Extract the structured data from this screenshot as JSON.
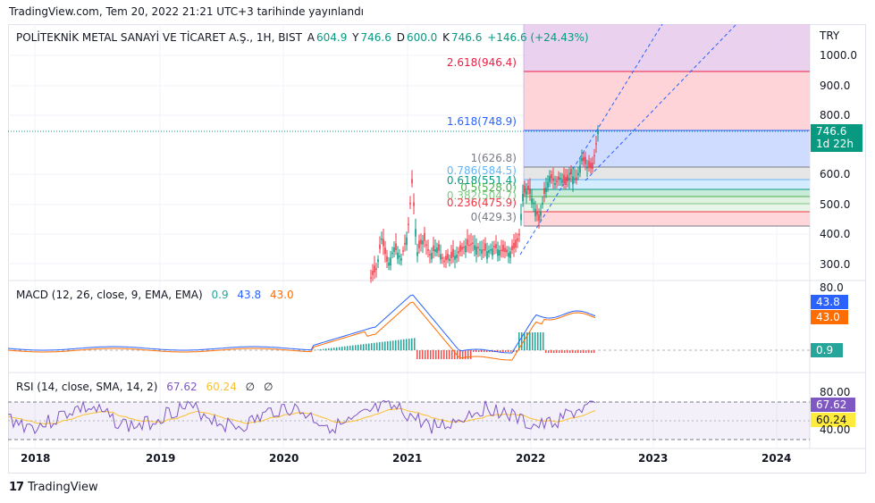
{
  "published": "TradingView.com, Tem 20, 2022 21:21 UTC+3 tarihinde yayınlandı",
  "header": {
    "symbol": "POLİTEKNİK METAL SANAYİ VE TİCARET A.Ş., 1H, BIST",
    "a_label": "A",
    "a_value": "604.9",
    "y_label": "Y",
    "y_value": "746.6",
    "d_label": "D",
    "d_value": "600.0",
    "k_label": "K",
    "k_value": "746.6",
    "change": "+146.6 (+24.43%)"
  },
  "currency": "TRY",
  "price_axis": {
    "ticks": [
      "1000.0",
      "900.0",
      "800.0",
      "600.0",
      "500.0",
      "400.0",
      "300.0"
    ],
    "last_price": "746.6",
    "countdown": "1d 22h"
  },
  "fib_levels": [
    {
      "label": "2.618(946.4)",
      "color": "#e91e43"
    },
    {
      "label": "1.618(748.9)",
      "color": "#2962ff"
    },
    {
      "label": "1(626.8)",
      "color": "#787b86"
    },
    {
      "label": "0.786(584.5)",
      "color": "#64b5f6"
    },
    {
      "label": "0.618(551.4)",
      "color": "#089981"
    },
    {
      "label": "0.5(528.0)",
      "color": "#4caf50"
    },
    {
      "label": "0.382(504.7)",
      "color": "#81c784"
    },
    {
      "label": "0.236(475.9)",
      "color": "#f23645"
    },
    {
      "label": "0(429.3)",
      "color": "#787b86"
    }
  ],
  "macd": {
    "label": "MACD (12, 26, close, 9, EMA, EMA)",
    "hist": "0.9",
    "macd": "43.8",
    "signal": "43.0",
    "axis_top": "80.0",
    "hist_color": "#26a69a",
    "macd_color": "#2962ff",
    "signal_color": "#ff6d00"
  },
  "rsi": {
    "label": "RSI (14, close, SMA, 14, 2)",
    "rsi": "67.62",
    "sma": "60.24",
    "na1": "∅",
    "na2": "∅",
    "axis_top": "80.00",
    "axis_bottom": "40.00",
    "rsi_color": "#7e57c2",
    "sma_color": "#fbc02d"
  },
  "time_axis": [
    "2018",
    "2019",
    "2020",
    "2021",
    "2022",
    "2023",
    "2024"
  ],
  "brand": {
    "logo": "17",
    "name": "TradingView"
  }
}
